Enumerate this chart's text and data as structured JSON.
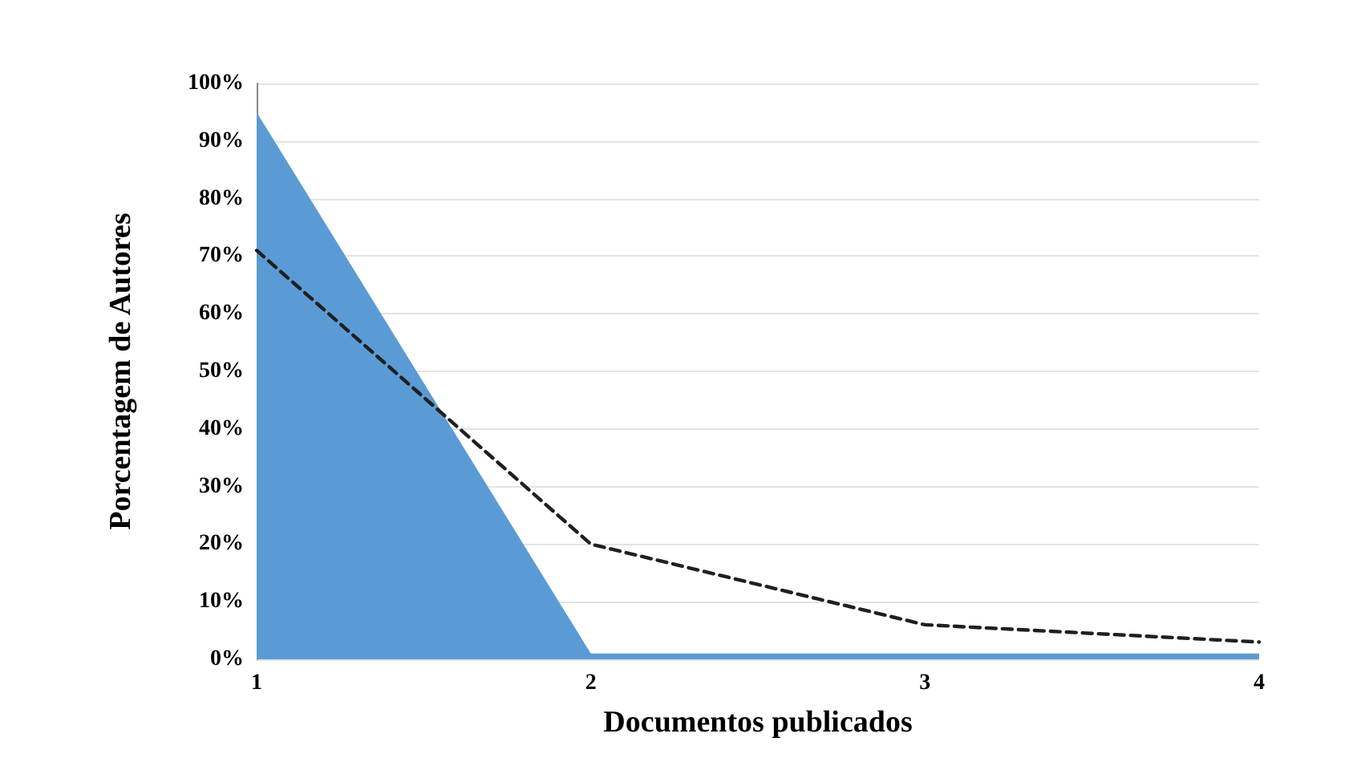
{
  "chart_data": {
    "type": "area",
    "xlabel": "Documentos publicados",
    "ylabel": "Porcentagem de Autores",
    "x": [
      1,
      2,
      3,
      4
    ],
    "series": [
      {
        "color": "#5b9bd5",
        "values": [
          95,
          1,
          1,
          1
        ]
      },
      {
        "type": "line",
        "color": "#1f1f1f",
        "line_style": "dashed",
        "marker": "none",
        "values": [
          71,
          20,
          6,
          3
        ]
      }
    ],
    "xlim": [
      1,
      4
    ],
    "xticks": [
      1,
      2,
      3,
      4
    ],
    "ylim": [
      0,
      100
    ],
    "yticks": [
      {
        "value": 0,
        "label": "0%"
      },
      {
        "value": 10,
        "label": "10%"
      },
      {
        "value": 20,
        "label": "20%"
      },
      {
        "value": 30,
        "label": "30%"
      },
      {
        "value": 40,
        "label": "40%"
      },
      {
        "value": 50,
        "label": "50%"
      },
      {
        "value": 60,
        "label": "60%"
      },
      {
        "value": 70,
        "label": "70%"
      },
      {
        "value": 80,
        "label": "80%"
      },
      {
        "value": 90,
        "label": "90%"
      },
      {
        "value": 100,
        "label": "100%"
      }
    ],
    "grid": "y"
  }
}
